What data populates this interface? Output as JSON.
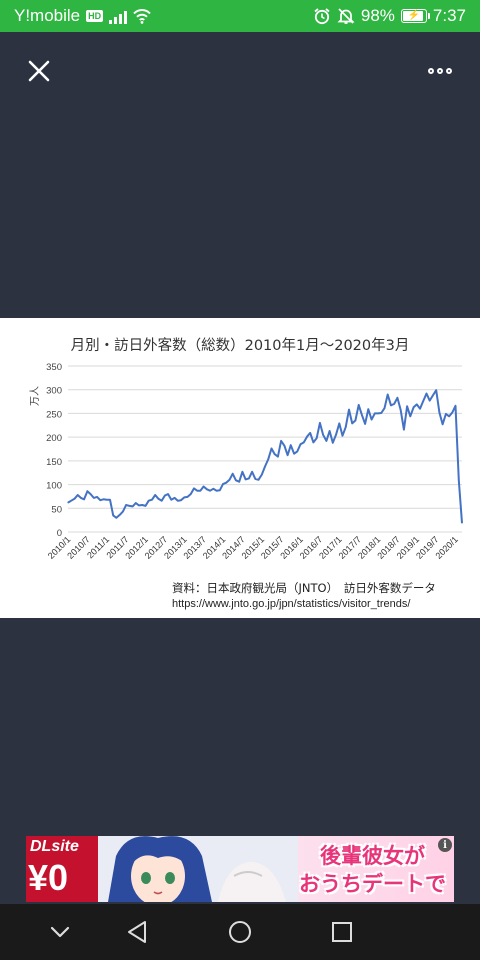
{
  "status_bar": {
    "carrier": "Y!mobile",
    "hd_badge": "HD",
    "battery_percent": "98%",
    "battery_level": 0.98,
    "time": "7:37"
  },
  "toolbar": {
    "close_icon": "close-icon",
    "more_icon": "more-options-icon"
  },
  "chart_data": {
    "type": "line",
    "title": "月別・訪日外客数（総数）2010年1月～2020年3月",
    "ylabel": "万人",
    "ylim": [
      0,
      350
    ],
    "yticks": [
      "0",
      "50",
      "100",
      "150",
      "200",
      "250",
      "300",
      "350"
    ],
    "xticks": [
      "2010/1",
      "2010/7",
      "2011/1",
      "2011/7",
      "2012/1",
      "2012/7",
      "2013/1",
      "2013/7",
      "2014/1",
      "2014/7",
      "2015/1",
      "2015/7",
      "2016/1",
      "2016/7",
      "2017/1",
      "2017/7",
      "2018/1",
      "2018/7",
      "2019/1",
      "2019/7",
      "2020/1"
    ],
    "grid": true,
    "line_color": "#4472c4",
    "series": [
      {
        "values": [
          62,
          66,
          70,
          78,
          72,
          69,
          86,
          80,
          72,
          74,
          67,
          69,
          68,
          68,
          35,
          30,
          36,
          43,
          57,
          55,
          54,
          61,
          56,
          57,
          55,
          66,
          68,
          78,
          70,
          66,
          77,
          80,
          68,
          72,
          66,
          67,
          73,
          74,
          80,
          92,
          87,
          87,
          96,
          90,
          87,
          91,
          87,
          88,
          101,
          104,
          110,
          123,
          109,
          106,
          127,
          111,
          113,
          127,
          112,
          110,
          121,
          138,
          153,
          176,
          164,
          159,
          192,
          182,
          162,
          183,
          165,
          170,
          185,
          189,
          201,
          209,
          189,
          198,
          230,
          205,
          192,
          213,
          188,
          205,
          229,
          203,
          221,
          258,
          229,
          235,
          268,
          247,
          228,
          259,
          237,
          250,
          250,
          251,
          261,
          290,
          267,
          270,
          283,
          258,
          216,
          265,
          244,
          263,
          269,
          260,
          276,
          292,
          277,
          288,
          299,
          252,
          227,
          249,
          244,
          252,
          266,
          109,
          19
        ]
      }
    ]
  },
  "chart_source": {
    "source_line": "資料：日本政府観光局（JNTO）　訪日外客数データ",
    "url": "https://www.jnto.go.jp/jpn/statistics/visitor_trends/"
  },
  "ad": {
    "brand": "DLsite",
    "price": "¥0",
    "headline_line1": "後輩彼女が",
    "headline_line2": "おうちデートで",
    "info_label": "i"
  },
  "nav_bar": {
    "items": [
      "collapse-icon",
      "back-icon",
      "home-icon",
      "recents-icon"
    ]
  }
}
